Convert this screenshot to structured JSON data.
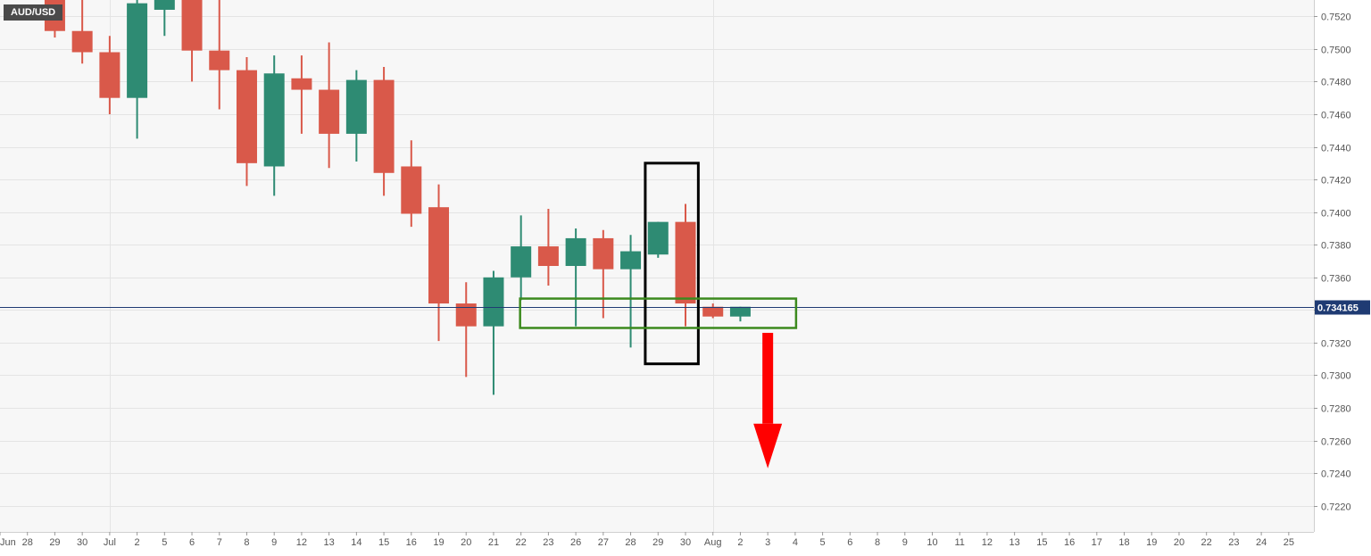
{
  "chart_data": {
    "type": "candlestick",
    "symbol": "AUD/USD",
    "last_price_label": "0.734165",
    "last_price": 0.734165,
    "y_range": [
      0.7204,
      0.753
    ],
    "y_ticks": [
      "0.7520",
      "0.7500",
      "0.7480",
      "0.7460",
      "0.7440",
      "0.7420",
      "0.7400",
      "0.7380",
      "0.7360",
      "0.7340",
      "0.7320",
      "0.7300",
      "0.7280",
      "0.7260",
      "0.7240",
      "0.7220"
    ],
    "x_tick_labels": [
      "Jun",
      "28",
      "29",
      "30",
      "Jul",
      "2",
      "5",
      "6",
      "7",
      "8",
      "9",
      "12",
      "13",
      "14",
      "15",
      "16",
      "19",
      "20",
      "21",
      "22",
      "23",
      "26",
      "27",
      "28",
      "29",
      "30",
      "Aug",
      "2",
      "3",
      "4",
      "5",
      "6",
      "8",
      "9",
      "10",
      "11",
      "12",
      "13",
      "15",
      "16",
      "17",
      "18",
      "19",
      "20",
      "22",
      "23",
      "24",
      "25"
    ],
    "grid": true,
    "colors": {
      "bullish": "#2e8b73",
      "bearish": "#d9594a",
      "price_line": "#1f3b73",
      "zone_box": "#3c8a1e",
      "signal_box": "#000000",
      "arrow": "#ff0000"
    },
    "candles": [
      {
        "date": "29",
        "open": 0.753,
        "high": 0.753,
        "low": 0.7507,
        "close": 0.7511
      },
      {
        "date": "30",
        "open": 0.7511,
        "high": 0.753,
        "low": 0.7491,
        "close": 0.7498
      },
      {
        "date": "Jul",
        "open": 0.7498,
        "high": 0.7508,
        "low": 0.746,
        "close": 0.747
      },
      {
        "date": "2",
        "open": 0.747,
        "high": 0.753,
        "low": 0.7445,
        "close": 0.7528
      },
      {
        "date": "5",
        "open": 0.7524,
        "high": 0.753,
        "low": 0.7508,
        "close": 0.753
      },
      {
        "date": "6",
        "open": 0.753,
        "high": 0.753,
        "low": 0.748,
        "close": 0.7499
      },
      {
        "date": "7",
        "open": 0.7499,
        "high": 0.753,
        "low": 0.7463,
        "close": 0.7487
      },
      {
        "date": "8",
        "open": 0.7487,
        "high": 0.7495,
        "low": 0.7416,
        "close": 0.743
      },
      {
        "date": "9",
        "open": 0.7428,
        "high": 0.7496,
        "low": 0.741,
        "close": 0.7485
      },
      {
        "date": "12",
        "open": 0.7482,
        "high": 0.7496,
        "low": 0.7448,
        "close": 0.7475
      },
      {
        "date": "13",
        "open": 0.7475,
        "high": 0.7504,
        "low": 0.7427,
        "close": 0.7448
      },
      {
        "date": "14",
        "open": 0.7448,
        "high": 0.7487,
        "low": 0.7431,
        "close": 0.7481
      },
      {
        "date": "15",
        "open": 0.7481,
        "high": 0.7489,
        "low": 0.741,
        "close": 0.7424
      },
      {
        "date": "16",
        "open": 0.7428,
        "high": 0.7444,
        "low": 0.7391,
        "close": 0.7399
      },
      {
        "date": "19",
        "open": 0.7403,
        "high": 0.7417,
        "low": 0.7321,
        "close": 0.7344
      },
      {
        "date": "20",
        "open": 0.7344,
        "high": 0.7357,
        "low": 0.7299,
        "close": 0.733
      },
      {
        "date": "21",
        "open": 0.733,
        "high": 0.7364,
        "low": 0.7288,
        "close": 0.736
      },
      {
        "date": "22",
        "open": 0.736,
        "high": 0.7398,
        "low": 0.7346,
        "close": 0.7379
      },
      {
        "date": "23",
        "open": 0.7379,
        "high": 0.7402,
        "low": 0.7355,
        "close": 0.7367
      },
      {
        "date": "26",
        "open": 0.7367,
        "high": 0.739,
        "low": 0.733,
        "close": 0.7384
      },
      {
        "date": "27",
        "open": 0.7384,
        "high": 0.7389,
        "low": 0.7335,
        "close": 0.7365
      },
      {
        "date": "28",
        "open": 0.7365,
        "high": 0.7386,
        "low": 0.7317,
        "close": 0.7376
      },
      {
        "date": "29",
        "open": 0.7374,
        "high": 0.7394,
        "low": 0.7372,
        "close": 0.7394
      },
      {
        "date": "30",
        "open": 0.7394,
        "high": 0.7405,
        "low": 0.733,
        "close": 0.7344
      },
      {
        "date": "Aug",
        "open": 0.7342,
        "high": 0.7344,
        "low": 0.7335,
        "close": 0.7336
      },
      {
        "date": "2",
        "open": 0.7336,
        "high": 0.7342,
        "low": 0.7333,
        "close": 0.7342
      }
    ],
    "annotations": {
      "signal_box": {
        "from_date": "29",
        "to_date": "30",
        "high": 0.743,
        "low": 0.7307
      },
      "support_zone": {
        "from_date": "22",
        "to_date": "4",
        "high": 0.7347,
        "low": 0.7329
      },
      "down_arrow": {
        "date": "3",
        "from_price": 0.7326,
        "to_price": 0.7243
      }
    }
  }
}
